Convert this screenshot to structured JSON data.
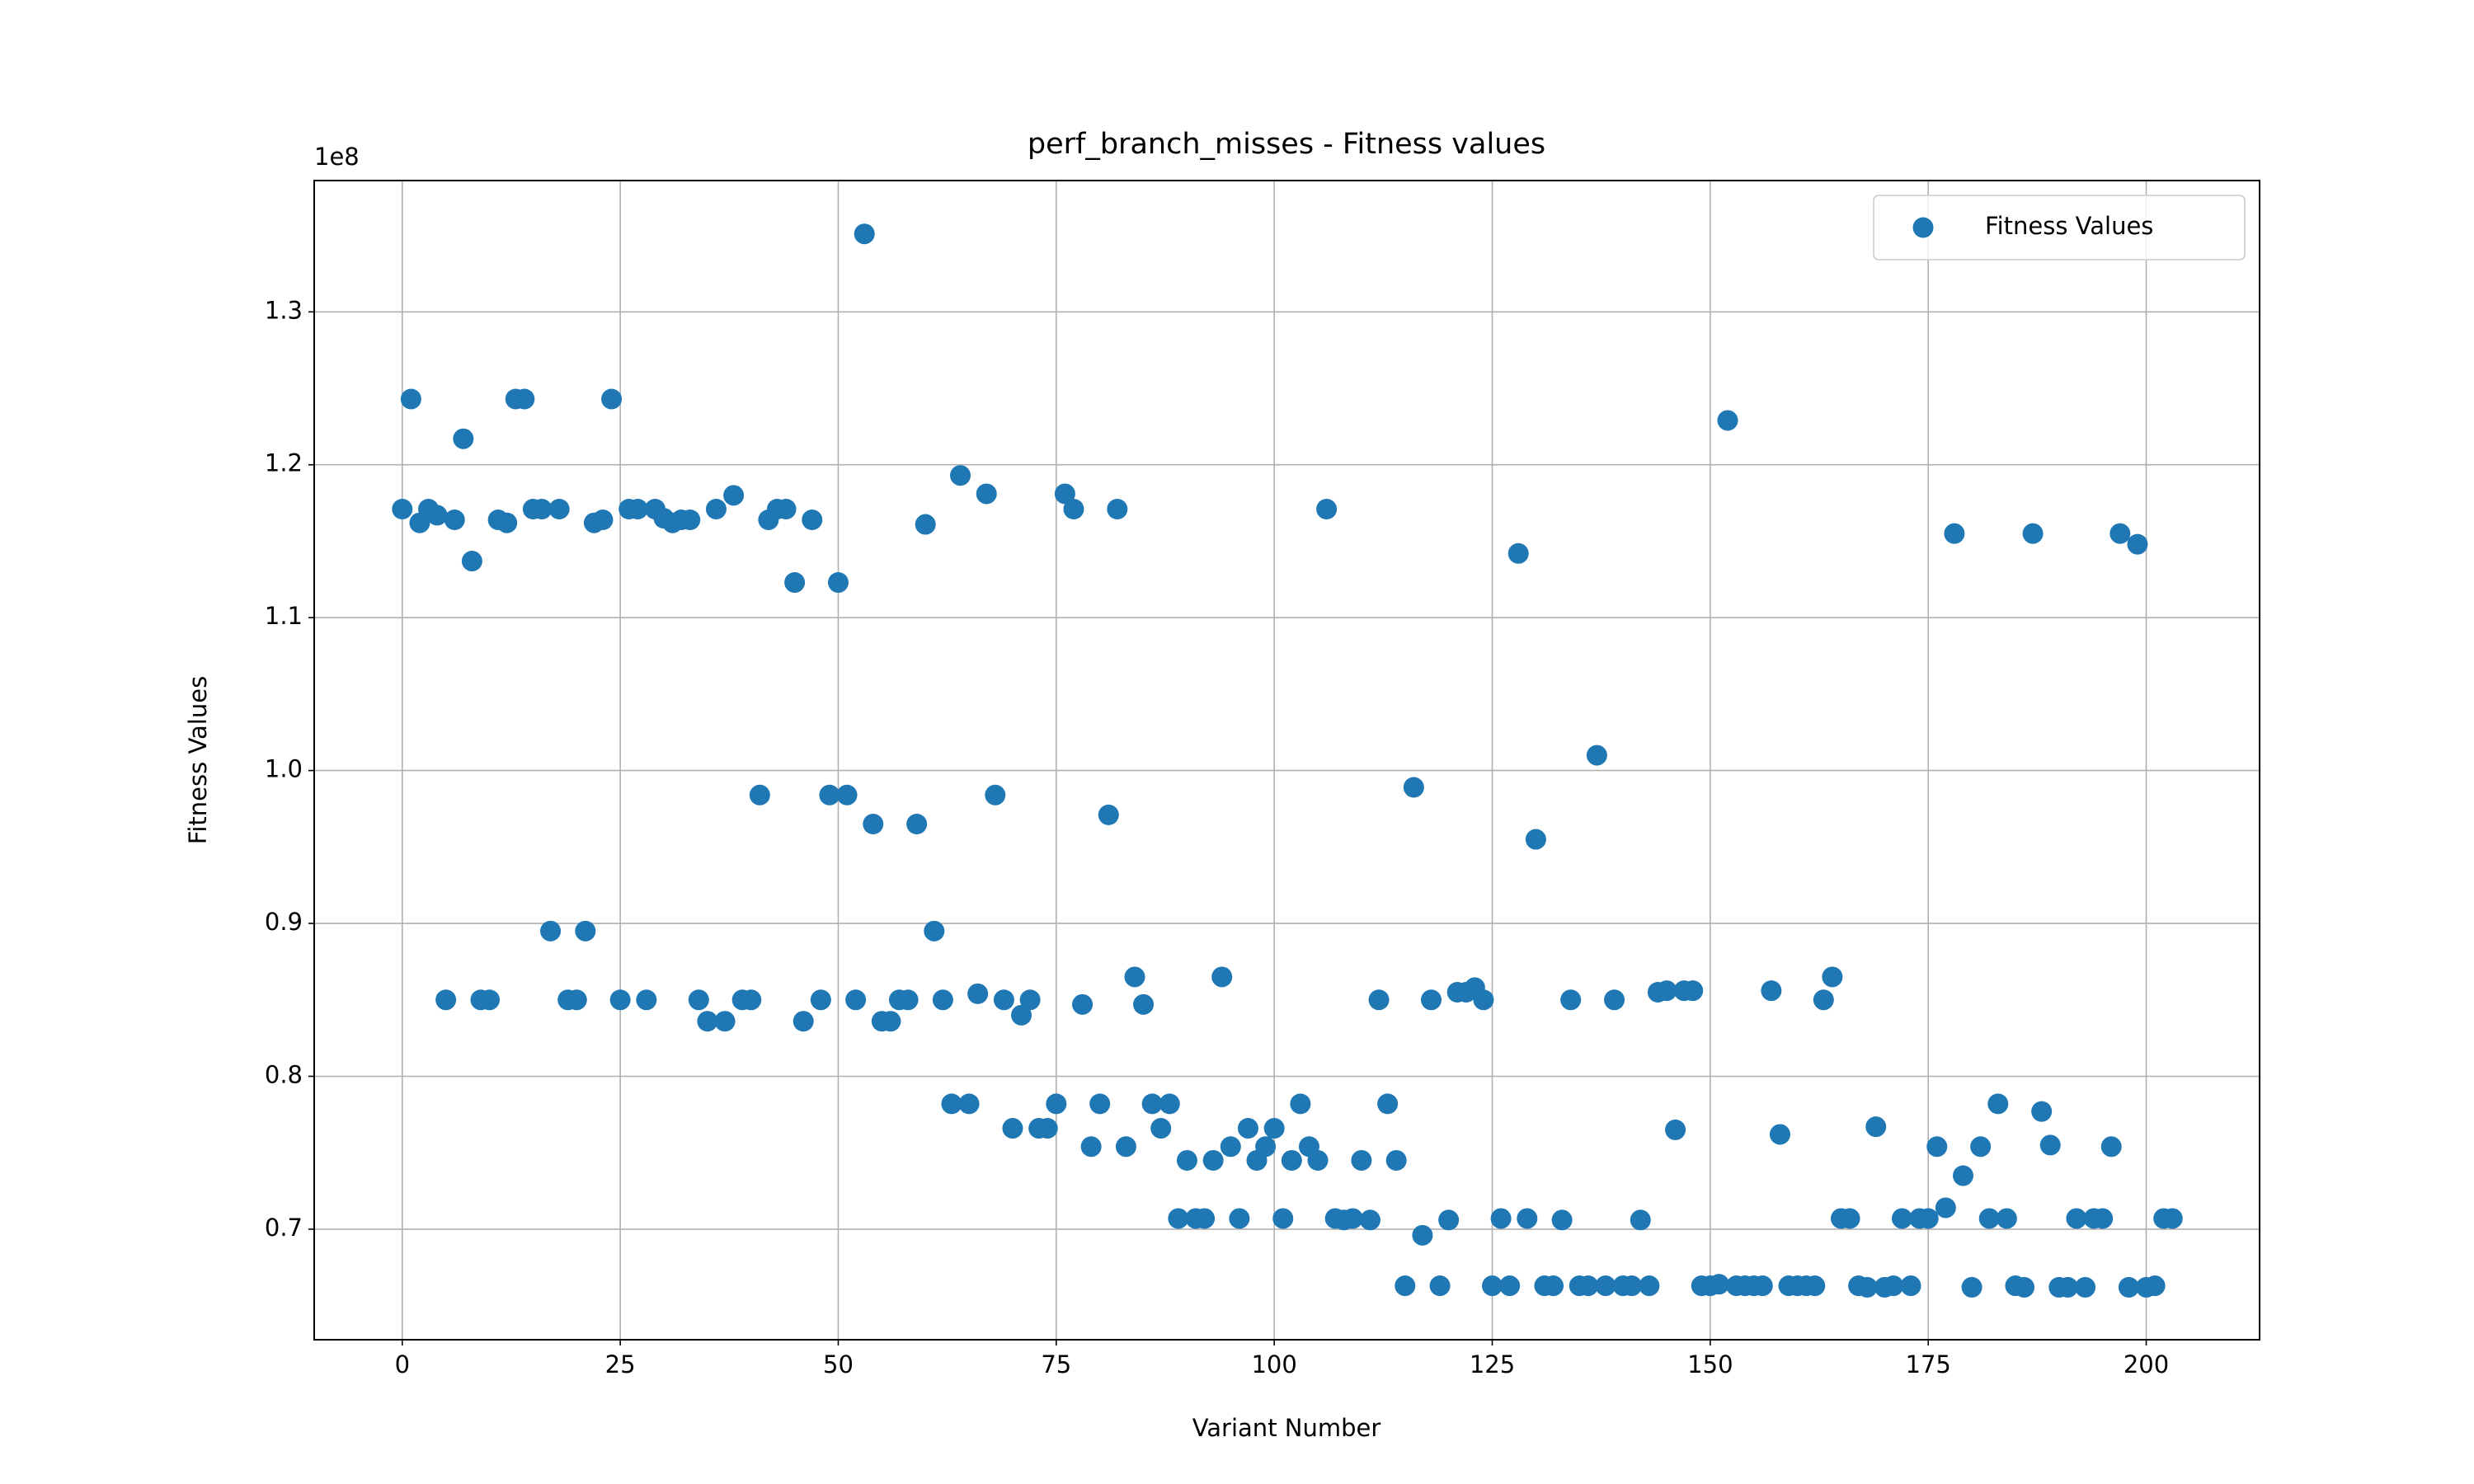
{
  "chart_data": {
    "type": "scatter",
    "title": "perf_branch_misses - Fitness values",
    "xlabel": "Variant Number",
    "ylabel": "Fitness Values",
    "y_offset_label": "1e8",
    "xlim": [
      -10.1,
      213.0
    ],
    "ylim": [
      0.6277,
      1.3859
    ],
    "xticks": [
      0,
      25,
      50,
      75,
      100,
      125,
      150,
      175,
      200
    ],
    "yticks": [
      0.7,
      0.8,
      0.9,
      {
        "value": 1,
        "label": "1.0"
      },
      1.1,
      1.2,
      1.3
    ],
    "grid": true,
    "legend": "upper right",
    "series": [
      {
        "name": "Fitness Values",
        "color": "#1f77b4",
        "x": [
          0,
          1,
          2,
          3,
          4,
          5,
          6,
          7,
          8,
          9,
          10,
          11,
          12,
          13,
          14,
          15,
          16,
          17,
          18,
          19,
          20,
          21,
          22,
          23,
          24,
          25,
          26,
          27,
          28,
          29,
          30,
          31,
          32,
          33,
          34,
          35,
          36,
          37,
          38,
          39,
          40,
          41,
          42,
          43,
          44,
          45,
          46,
          47,
          48,
          49,
          50,
          51,
          52,
          53,
          54,
          55,
          56,
          57,
          58,
          59,
          60,
          61,
          62,
          63,
          64,
          65,
          66,
          67,
          68,
          69,
          70,
          71,
          72,
          73,
          74,
          75,
          76,
          77,
          78,
          79,
          80,
          81,
          82,
          83,
          84,
          85,
          86,
          87,
          88,
          89,
          90,
          91,
          92,
          93,
          94,
          95,
          96,
          97,
          98,
          99,
          100,
          101,
          102,
          103,
          104,
          105,
          106,
          107,
          108,
          109,
          110,
          111,
          112,
          113,
          114,
          115,
          116,
          117,
          118,
          119,
          120,
          121,
          122,
          123,
          124,
          125,
          126,
          127,
          128,
          129,
          130,
          131,
          132,
          133,
          134,
          135,
          136,
          137,
          138,
          139,
          140,
          141,
          142,
          143,
          144,
          145,
          146,
          147,
          148,
          149,
          150,
          151,
          152,
          153,
          154,
          155,
          156,
          157,
          158,
          159,
          160,
          161,
          162,
          163,
          164,
          165,
          166,
          167,
          168,
          169,
          170,
          171,
          172,
          173,
          174,
          175,
          176,
          177,
          178,
          179,
          180,
          181,
          182,
          183,
          184,
          185,
          186,
          187,
          188,
          189,
          190,
          191,
          192,
          193,
          194,
          195,
          196,
          197,
          198,
          199,
          200,
          201,
          202,
          203
        ],
        "values": [
          1.171,
          1.243,
          1.162,
          1.171,
          1.167,
          0.85,
          1.164,
          1.217,
          1.137,
          0.85,
          0.85,
          1.164,
          1.162,
          1.243,
          1.243,
          1.171,
          1.171,
          0.895,
          1.171,
          0.85,
          0.85,
          0.895,
          1.162,
          1.164,
          1.243,
          0.85,
          1.171,
          1.171,
          0.85,
          1.171,
          1.165,
          1.162,
          1.164,
          1.164,
          0.85,
          0.836,
          1.171,
          0.836,
          1.18,
          0.85,
          0.85,
          0.984,
          1.164,
          1.171,
          1.171,
          1.123,
          0.836,
          1.164,
          0.85,
          0.984,
          1.123,
          0.984,
          0.85,
          1.351,
          0.965,
          0.836,
          0.836,
          0.85,
          0.85,
          0.965,
          1.161,
          0.895,
          0.85,
          0.782,
          1.193,
          0.782,
          0.854,
          1.181,
          0.984,
          0.85,
          0.766,
          0.84,
          0.85,
          0.766,
          0.766,
          0.782,
          1.181,
          1.171,
          0.847,
          0.754,
          0.782,
          0.971,
          1.171,
          0.754,
          0.865,
          0.847,
          0.782,
          0.766,
          0.782,
          0.707,
          0.745,
          0.707,
          0.707,
          0.745,
          0.865,
          0.754,
          0.707,
          0.766,
          0.745,
          0.754,
          0.766,
          0.707,
          0.745,
          0.782,
          0.754,
          0.745,
          1.171,
          0.707,
          0.706,
          0.707,
          0.745,
          0.706,
          0.85,
          0.782,
          0.745,
          0.663,
          0.989,
          0.696,
          0.85,
          0.663,
          0.706,
          0.855,
          0.855,
          0.858,
          0.85,
          0.663,
          0.707,
          0.663,
          1.142,
          0.707,
          0.955,
          0.663,
          0.663,
          0.706,
          0.85,
          0.663,
          0.663,
          1.01,
          0.663,
          0.85,
          0.663,
          0.663,
          0.706,
          0.663,
          0.855,
          0.856,
          0.765,
          0.856,
          0.856,
          0.663,
          0.663,
          0.664,
          1.229,
          0.663,
          0.663,
          0.663,
          0.663,
          0.856,
          0.762,
          0.663,
          0.663,
          0.663,
          0.663,
          0.85,
          0.865,
          0.707,
          0.707,
          0.663,
          0.662,
          0.767,
          0.662,
          0.663,
          0.707,
          0.663,
          0.707,
          0.707,
          0.754,
          0.714,
          1.155,
          0.735,
          0.662,
          0.754,
          0.707,
          0.782,
          0.707,
          0.663,
          0.662,
          1.155,
          0.777,
          0.755,
          0.662,
          0.662,
          0.707,
          0.662,
          0.707,
          0.707,
          0.754,
          1.155,
          0.662,
          1.148,
          0.662,
          0.663,
          0.707,
          0.707
        ]
      }
    ]
  }
}
